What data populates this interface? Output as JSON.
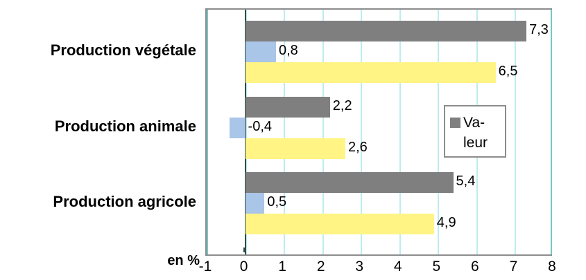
{
  "chart_data": {
    "type": "bar",
    "orientation": "horizontal",
    "title": "",
    "xlabel": "en %",
    "ylabel": "",
    "xlim": [
      -1,
      8
    ],
    "grid": true,
    "grid_color": "#BDEDED",
    "zero_line_color": "#2F4A4A",
    "frame_color": "#8C8C8C",
    "categories": [
      "Production végétale",
      "Production animale",
      "Production agricole"
    ],
    "series": [
      {
        "name": "Valeur",
        "color": "#7F7F7F",
        "values": [
          7.3,
          2.2,
          5.4
        ],
        "labels": [
          "7,3",
          "2,2",
          "5,4"
        ]
      },
      {
        "color": "#A9C5E8",
        "values": [
          0.8,
          -0.4,
          0.5
        ],
        "labels": [
          "0,8",
          "-0,4",
          "0,5"
        ]
      },
      {
        "color": "#FFF484",
        "values": [
          6.5,
          2.6,
          4.9
        ],
        "labels": [
          "6,5",
          "2,6",
          "4,9"
        ]
      }
    ],
    "xticks": [
      -1,
      0,
      1,
      2,
      3,
      4,
      5,
      6,
      7,
      8
    ],
    "xtick_labels": [
      "-1",
      "0",
      "1",
      "2",
      "3",
      "4",
      "5",
      "6",
      "7",
      "8"
    ],
    "legend": {
      "position": "middle-right",
      "entries": [
        {
          "name": "Valeur",
          "label_lines": [
            "Va-",
            "leur"
          ],
          "color": "#7F7F7F"
        }
      ]
    }
  }
}
